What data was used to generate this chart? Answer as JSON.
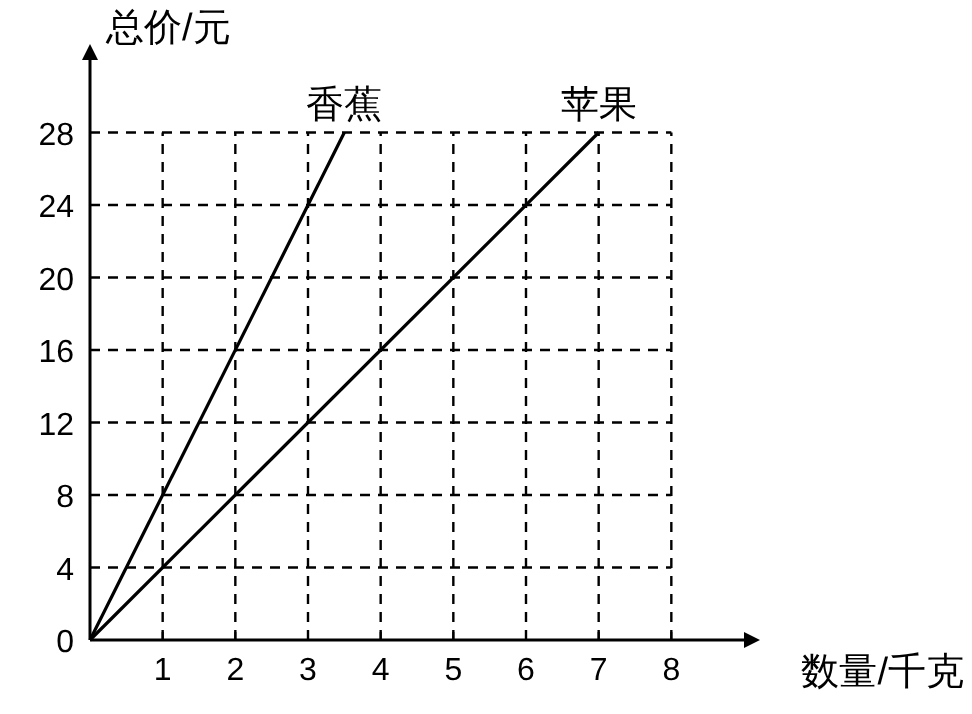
{
  "chart_data": {
    "type": "line",
    "xlabel": "数量/千克",
    "ylabel": "总价/元",
    "xlim": [
      0,
      9
    ],
    "ylim": [
      0,
      32
    ],
    "xticks": [
      {
        "value": 0,
        "label": null
      },
      1,
      2,
      3,
      4,
      5,
      6,
      7,
      8
    ],
    "yticks": [
      0,
      4,
      8,
      12,
      16,
      20,
      24,
      28
    ],
    "grid": true,
    "legend": false,
    "marker": "none",
    "line_style": "solid",
    "series": [
      {
        "name": "香蕉",
        "color": "#000000",
        "x": [
          0,
          3.5
        ],
        "values": [
          0,
          28
        ]
      },
      {
        "name": "苹果",
        "color": "#000000",
        "x": [
          0,
          7
        ],
        "values": [
          0,
          28
        ]
      }
    ]
  }
}
